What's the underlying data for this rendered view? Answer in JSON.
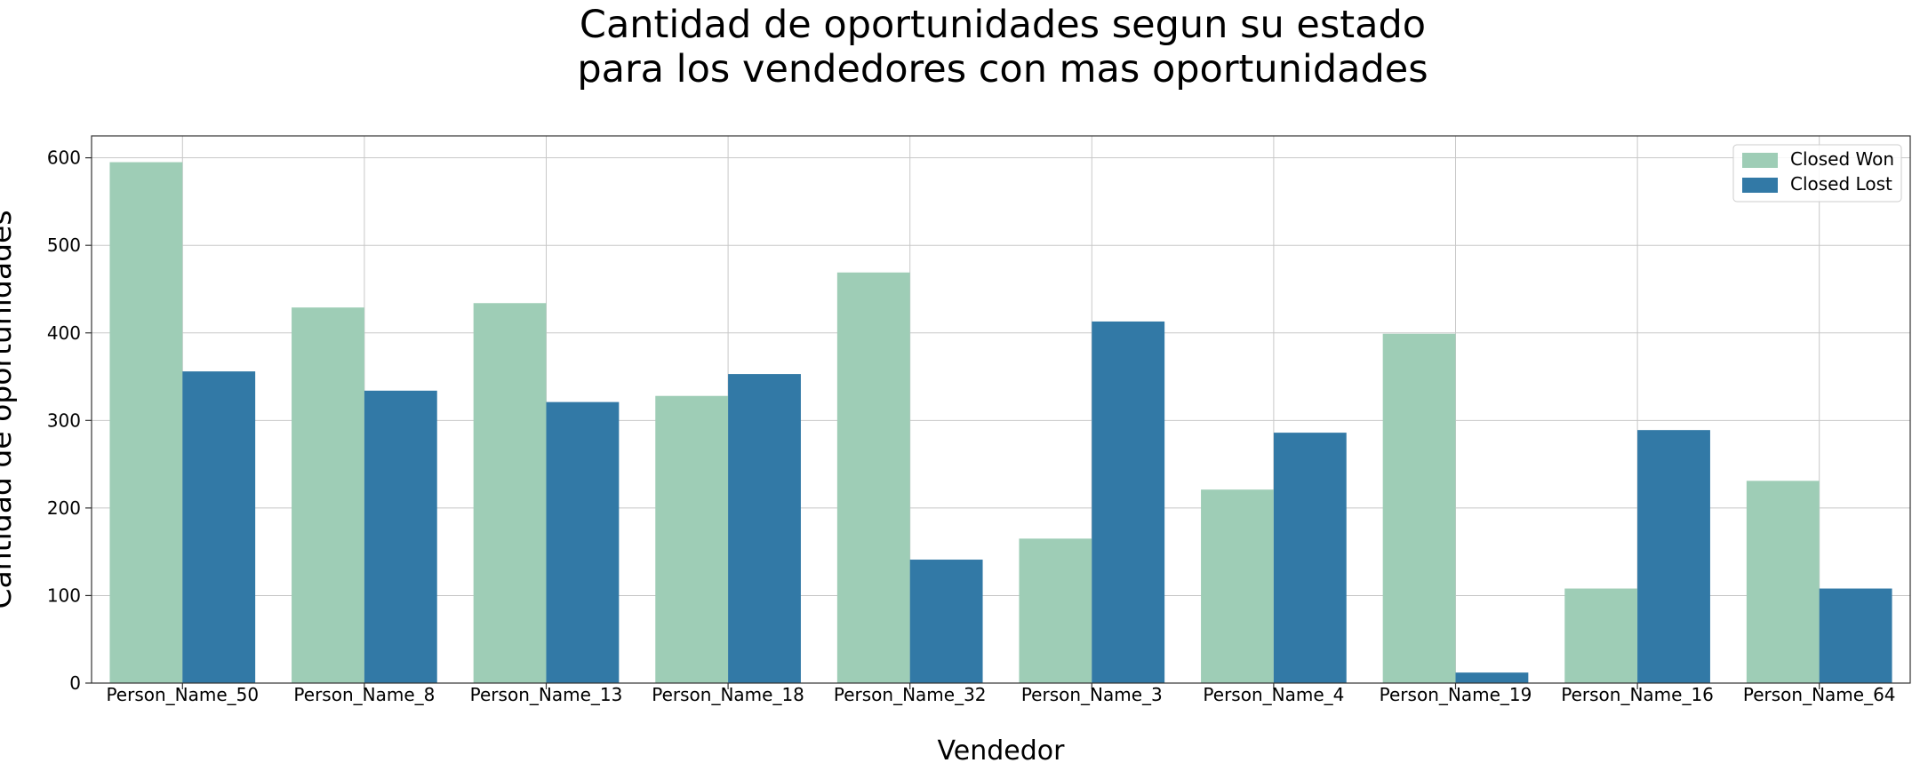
{
  "chart_data": {
    "type": "bar",
    "title": "Cantidad de oportunidades segun su estado\npara los vendedores con mas oportunidades",
    "title_lines": [
      "Cantidad de oportunidades segun su estado",
      "para los vendedores con mas oportunidades"
    ],
    "xlabel": "Vendedor",
    "ylabel": "Cantidad de oportunidades",
    "categories": [
      "Person_Name_50",
      "Person_Name_8",
      "Person_Name_13",
      "Person_Name_18",
      "Person_Name_32",
      "Person_Name_3",
      "Person_Name_4",
      "Person_Name_19",
      "Person_Name_16",
      "Person_Name_64"
    ],
    "series": [
      {
        "name": "Closed Won",
        "color": "#9ecdb6",
        "values": [
          595,
          429,
          434,
          328,
          469,
          165,
          221,
          399,
          108,
          231
        ]
      },
      {
        "name": "Closed Lost",
        "color": "#3279a6",
        "values": [
          356,
          334,
          321,
          353,
          141,
          413,
          286,
          12,
          289,
          108
        ]
      }
    ],
    "ylim": [
      0,
      625
    ],
    "yticks": [
      0,
      100,
      200,
      300,
      400,
      500,
      600
    ],
    "grid": true,
    "legend_position": "top-right"
  }
}
